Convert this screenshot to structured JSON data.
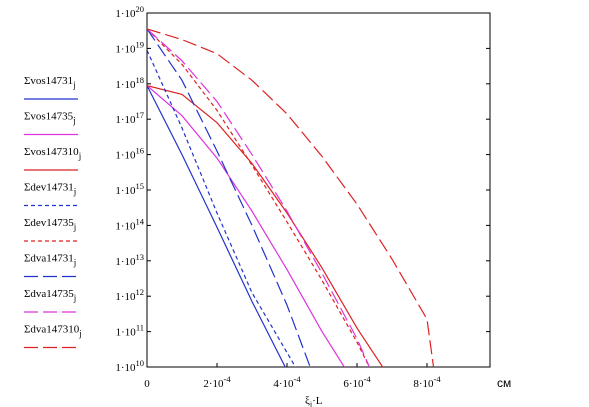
{
  "chart_data": {
    "type": "line",
    "xlabel": "ξj·L",
    "x_unit": "см",
    "ylim_log10": [
      10,
      20
    ],
    "xlim": [
      0,
      0.00098
    ],
    "y_scale": "log",
    "grid": false,
    "legend_placement": "left",
    "x_ticks": [
      {
        "value": 0,
        "label": "0"
      },
      {
        "value": 0.0002,
        "label": "2·10^-4"
      },
      {
        "value": 0.0004,
        "label": "4·10^-4"
      },
      {
        "value": 0.0006,
        "label": "6·10^-4"
      },
      {
        "value": 0.0008,
        "label": "8·10^-4"
      }
    ],
    "y_ticks": [
      {
        "value": 1e+20,
        "label": "1·10^20"
      },
      {
        "value": 1e+19,
        "label": "1·10^19"
      },
      {
        "value": 1e+18,
        "label": "1·10^18"
      },
      {
        "value": 1e+17,
        "label": "1·10^17"
      },
      {
        "value": 1e+16,
        "label": "1·10^16"
      },
      {
        "value": 1000000000000000.0,
        "label": "1·10^15"
      },
      {
        "value": 100000000000000.0,
        "label": "1·10^14"
      },
      {
        "value": 10000000000000.0,
        "label": "1·10^13"
      },
      {
        "value": 1000000000000.0,
        "label": "1·10^12"
      },
      {
        "value": 100000000000.0,
        "label": "1·10^11"
      },
      {
        "value": 10000000000.0,
        "label": "1·10^10"
      }
    ],
    "series": [
      {
        "name": "Σvos14731j",
        "color": "#2233cc",
        "dash": "solid",
        "x": [
          0,
          0.0001,
          0.0002,
          0.0003,
          0.0004
        ],
        "y_log10": [
          17.95,
          16.0,
          13.95,
          11.85,
          9.9
        ]
      },
      {
        "name": "Σvos14735j",
        "color": "#dd33dd",
        "dash": "solid",
        "x": [
          0,
          0.0001,
          0.0002,
          0.0003,
          0.0004,
          0.0005,
          0.00057
        ],
        "y_log10": [
          17.95,
          17.1,
          15.9,
          14.4,
          12.75,
          11.0,
          9.9
        ]
      },
      {
        "name": "Σvos147310j",
        "color": "#dd2222",
        "dash": "solid",
        "x": [
          0,
          0.0001,
          0.0002,
          0.0003,
          0.0004,
          0.0005,
          0.0006,
          0.00068
        ],
        "y_log10": [
          17.95,
          17.7,
          16.9,
          15.75,
          14.35,
          12.8,
          11.1,
          9.9
        ]
      },
      {
        "name": "Σdev14731j",
        "color": "#2233cc",
        "dash": "short",
        "x": [
          0,
          0.0001,
          0.0002,
          0.0003,
          0.00043
        ],
        "y_log10": [
          18.95,
          16.75,
          14.35,
          12.1,
          9.9
        ]
      },
      {
        "name": "Σdev14735j",
        "color": "#dd2222",
        "dash": "short",
        "x": [
          0,
          0.0001,
          0.0002,
          0.0003,
          0.0004,
          0.0005,
          0.0006,
          0.00064
        ],
        "y_log10": [
          19.55,
          18.55,
          17.25,
          15.7,
          14.1,
          12.45,
          10.7,
          9.9
        ]
      },
      {
        "name": "Σdva14731j",
        "color": "#2233cc",
        "dash": "long",
        "x": [
          0,
          0.0001,
          0.0002,
          0.0003,
          0.0004,
          0.00047
        ],
        "y_log10": [
          19.55,
          18.1,
          16.1,
          14.0,
          11.75,
          9.9
        ]
      },
      {
        "name": "Σdva14735j",
        "color": "#dd33dd",
        "dash": "long",
        "x": [
          0,
          0.0001,
          0.0002,
          0.0003,
          0.0004,
          0.0005,
          0.0006,
          0.00064
        ],
        "y_log10": [
          19.55,
          18.65,
          17.5,
          16.0,
          14.4,
          12.65,
          10.8,
          9.9
        ]
      },
      {
        "name": "Σdva147310j",
        "color": "#dd2222",
        "dash": "long",
        "x": [
          0,
          0.0001,
          0.0002,
          0.0003,
          0.0004,
          0.0005,
          0.0006,
          0.0007,
          0.0008,
          0.00082
        ],
        "y_log10": [
          19.55,
          19.25,
          18.85,
          18.1,
          17.15,
          15.95,
          14.6,
          13.05,
          11.35,
          9.9
        ]
      }
    ]
  }
}
